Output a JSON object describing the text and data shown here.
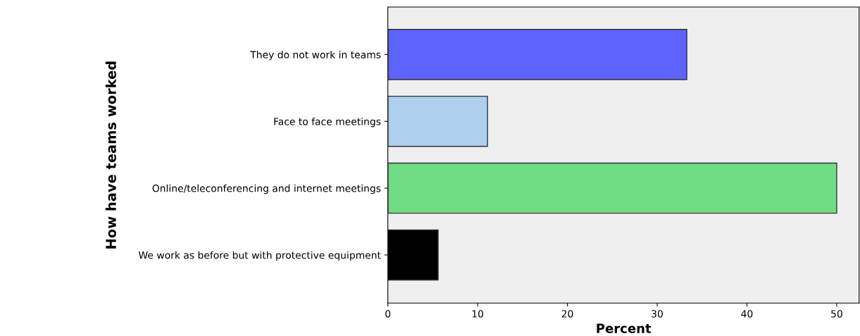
{
  "chart_data": {
    "type": "bar",
    "orientation": "horizontal",
    "xlabel": "Percent",
    "ylabel": "How have teams worked",
    "categories": [
      "They do not work in teams",
      "Face to face meetings",
      "Online/teleconferencing and internet meetings",
      "We work as before but with protective equipment"
    ],
    "values": [
      33.3,
      11.1,
      50.0,
      5.6
    ],
    "colors": [
      "#5e62ff",
      "#aecfee",
      "#70dc84",
      "#000000"
    ],
    "xlim": [
      0,
      52.5
    ],
    "xticks": [
      0,
      10,
      20,
      30,
      40,
      50
    ],
    "grid": false
  }
}
